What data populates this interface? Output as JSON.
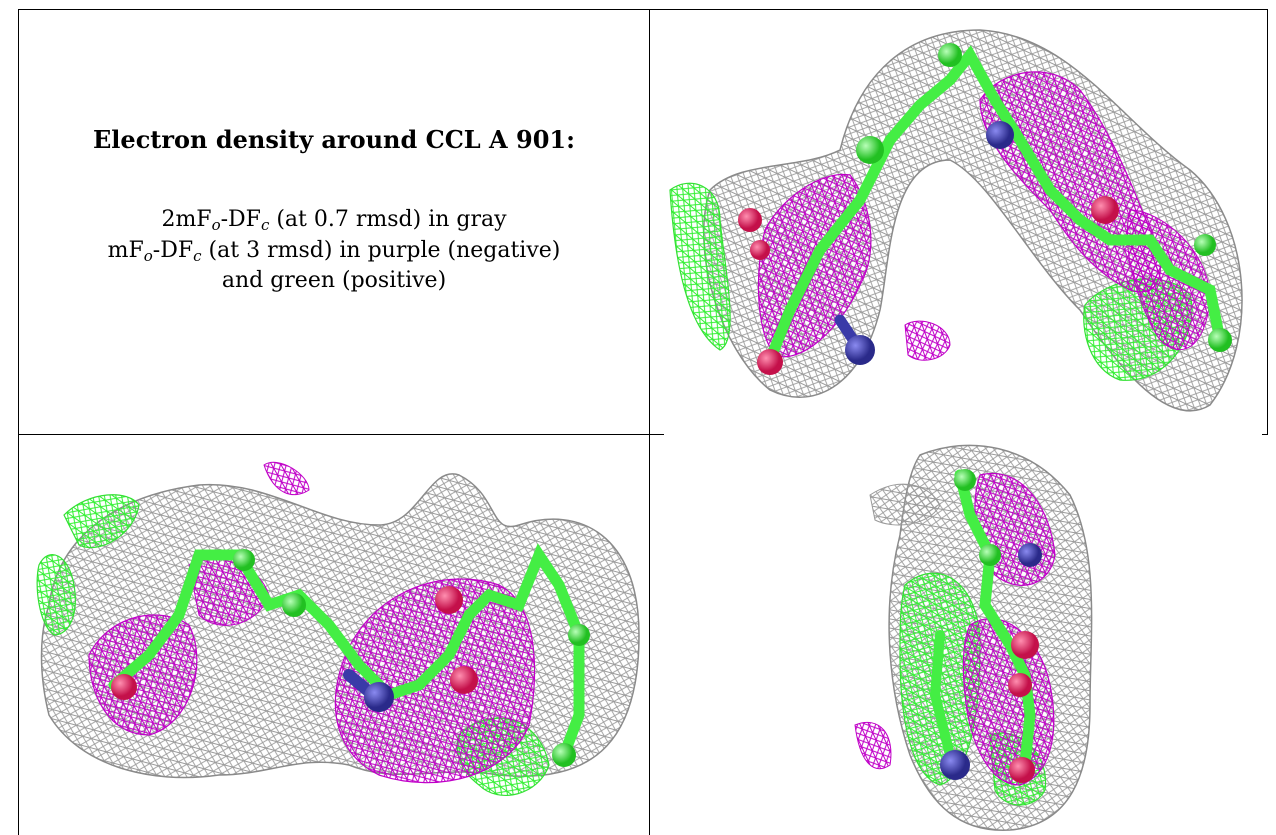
{
  "caption": {
    "title": "Electron density around CCL A 901:",
    "line1": {
      "pre": "2mF",
      "sub1": "o",
      "mid": "-DF",
      "sub2": "c",
      "post": " (at 0.7 rmsd) in gray"
    },
    "line2": {
      "pre": "mF",
      "sub1": "o",
      "mid": "-DF",
      "sub2": "c",
      "post": " (at 3 rmsd) in purple (negative)"
    },
    "line3": "and green (positive)"
  },
  "colors": {
    "gray_mesh": "#9a9a9a",
    "purple_mesh": "#c000c8",
    "green_mesh": "#33f033",
    "carbon": "#44ee44",
    "oxygen": "#e8185a",
    "nitrogen": "#3a3aa8"
  },
  "panels": [
    {
      "name": "view-top-right"
    },
    {
      "name": "view-bottom-left"
    },
    {
      "name": "view-bottom-right"
    }
  ]
}
